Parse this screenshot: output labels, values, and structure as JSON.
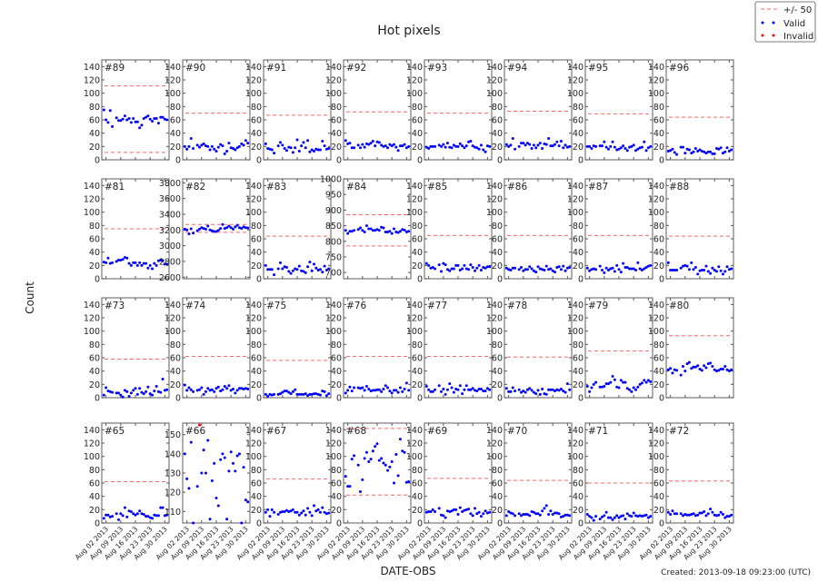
{
  "chart_data": {
    "type": "scatter",
    "title": "Hot pixels",
    "xlabel": "DATE-OBS",
    "ylabel": "Count",
    "footer": "Created: 2013-09-18 09:23:00 (UTC)",
    "legend": {
      "placement": "top-right",
      "entries": [
        {
          "label": "+/- 50",
          "style": "dashed-line",
          "color": "#ff6666"
        },
        {
          "label": "Valid",
          "style": "dots",
          "color": "#0000ff"
        },
        {
          "label": "Invalid",
          "style": "dots",
          "color": "#ff0000"
        }
      ]
    },
    "colors": {
      "valid": "#0000ff",
      "invalid": "#ff0000",
      "limit": "#ff6666"
    },
    "grid": false,
    "xlim": [
      "2013-07-31",
      "2013-09-01"
    ],
    "xticks": [
      "2013-08-02",
      "2013-08-09",
      "2013-08-16",
      "2013-08-23",
      "2013-08-30"
    ],
    "xtick_labels": [
      "Aug 02 2013",
      "Aug 09 2013",
      "Aug 16 2013",
      "Aug 23 2013",
      "Aug 30 2013"
    ],
    "dates": [
      "2013-08-01",
      "2013-08-02",
      "2013-08-03",
      "2013-08-04",
      "2013-08-05",
      "2013-08-07",
      "2013-08-08",
      "2013-08-09",
      "2013-08-10",
      "2013-08-11",
      "2013-08-12",
      "2013-08-13",
      "2013-08-14",
      "2013-08-15",
      "2013-08-16",
      "2013-08-17",
      "2013-08-18",
      "2013-08-19",
      "2013-08-20",
      "2013-08-21",
      "2013-08-22",
      "2013-08-23",
      "2013-08-24",
      "2013-08-25",
      "2013-08-26",
      "2013-08-27",
      "2013-08-28",
      "2013-08-29",
      "2013-08-30",
      "2013-08-31"
    ],
    "default_ylim": [
      0,
      150
    ],
    "default_yticks": [
      0,
      20,
      40,
      60,
      80,
      100,
      120,
      140
    ],
    "panels": [
      {
        "label": "#89",
        "limits": [
          111,
          11
        ],
        "values": [
          75,
          60,
          56,
          74,
          50,
          63,
          59,
          59,
          61,
          66,
          60,
          62,
          56,
          62,
          57,
          57,
          48,
          52,
          62,
          64,
          66,
          61,
          58,
          62,
          62,
          55,
          64,
          64,
          61,
          60
        ]
      },
      {
        "label": "#90",
        "limits": [
          70
        ],
        "values": [
          20,
          16,
          20,
          32,
          17,
          22,
          19,
          22,
          24,
          21,
          20,
          15,
          20,
          16,
          13,
          19,
          23,
          21,
          9,
          13,
          25,
          18,
          17,
          15,
          18,
          20,
          24,
          22,
          29,
          25
        ]
      },
      {
        "label": "#91",
        "limits": [
          67
        ],
        "values": [
          24,
          17,
          16,
          15,
          10,
          21,
          26,
          22,
          17,
          14,
          19,
          18,
          11,
          18,
          30,
          13,
          21,
          26,
          18,
          29,
          12,
          15,
          13,
          16,
          15,
          15,
          28,
          21,
          16,
          17
        ]
      },
      {
        "label": "#92",
        "limits": [
          72
        ],
        "values": [
          29,
          24,
          25,
          18,
          18,
          22,
          18,
          23,
          19,
          24,
          23,
          25,
          28,
          21,
          27,
          26,
          22,
          20,
          21,
          18,
          23,
          21,
          23,
          19,
          14,
          21,
          21,
          23,
          18,
          20
        ]
      },
      {
        "label": "#93",
        "limits": [
          70
        ],
        "values": [
          19,
          17,
          20,
          20,
          20,
          22,
          20,
          23,
          19,
          25,
          19,
          18,
          22,
          20,
          20,
          24,
          21,
          18,
          21,
          27,
          28,
          21,
          19,
          18,
          16,
          22,
          15,
          12,
          21,
          20
        ]
      },
      {
        "label": "#94",
        "limits": [
          73
        ],
        "values": [
          23,
          20,
          22,
          32,
          16,
          20,
          25,
          25,
          22,
          25,
          23,
          17,
          22,
          18,
          22,
          25,
          17,
          24,
          23,
          32,
          21,
          21,
          23,
          27,
          21,
          28,
          18,
          22,
          19,
          20
        ]
      },
      {
        "label": "#95",
        "limits": [
          69
        ],
        "values": [
          20,
          20,
          17,
          21,
          20,
          21,
          21,
          27,
          19,
          16,
          20,
          27,
          19,
          15,
          16,
          18,
          21,
          17,
          14,
          19,
          20,
          22,
          14,
          16,
          18,
          19,
          27,
          14,
          18,
          20
        ]
      },
      {
        "label": "#96",
        "limits": [
          64
        ],
        "values": [
          13,
          14,
          16,
          11,
          8,
          19,
          19,
          10,
          16,
          15,
          10,
          12,
          17,
          13,
          15,
          13,
          12,
          10,
          12,
          12,
          9,
          9,
          17,
          16,
          18,
          10,
          12,
          18,
          13,
          15
        ]
      },
      {
        "label": "#81",
        "limits": [
          75
        ],
        "values": [
          25,
          24,
          31,
          23,
          24,
          26,
          28,
          28,
          29,
          32,
          31,
          23,
          20,
          24,
          24,
          20,
          24,
          20,
          23,
          23,
          16,
          20,
          15,
          23,
          20,
          27,
          28,
          27,
          22,
          22
        ]
      },
      {
        "label": "#82",
        "limits": [
          3270,
          3170
        ],
        "ylim": [
          2580,
          3850
        ],
        "yticks": [
          2600,
          2800,
          3000,
          3200,
          3400,
          3600,
          3800
        ],
        "values": [
          3210,
          3200,
          3150,
          3215,
          3160,
          3190,
          3210,
          3230,
          3220,
          3210,
          3250,
          3200,
          3190,
          3180,
          3180,
          3195,
          3220,
          3270,
          3220,
          3230,
          3250,
          3230,
          3210,
          3240,
          3260,
          3230,
          3220,
          3240,
          3230,
          3225
        ]
      },
      {
        "label": "#83",
        "limits": [
          64
        ],
        "values": [
          20,
          14,
          14,
          14,
          6,
          15,
          24,
          15,
          18,
          17,
          11,
          8,
          12,
          15,
          14,
          19,
          12,
          11,
          9,
          18,
          25,
          12,
          22,
          16,
          13,
          14,
          10,
          19,
          13,
          15
        ]
      },
      {
        "label": "#84",
        "limits": [
          885,
          785
        ],
        "ylim": [
          680,
          1000
        ],
        "yticks": [
          700,
          750,
          800,
          850,
          900,
          950,
          1000
        ],
        "values": [
          835,
          825,
          832,
          832,
          835,
          838,
          843,
          835,
          830,
          850,
          840,
          840,
          835,
          835,
          838,
          835,
          845,
          843,
          830,
          830,
          832,
          825,
          840,
          830,
          828,
          832,
          838,
          836,
          830,
          832
        ]
      },
      {
        "label": "#85",
        "limits": [
          65
        ],
        "values": [
          23,
          20,
          16,
          17,
          15,
          21,
          11,
          23,
          21,
          14,
          12,
          15,
          15,
          20,
          20,
          13,
          15,
          20,
          15,
          14,
          21,
          17,
          12,
          16,
          20,
          13,
          17,
          16,
          18,
          18
        ]
      },
      {
        "label": "#86",
        "limits": [
          65
        ],
        "values": [
          16,
          14,
          13,
          16,
          16,
          14,
          17,
          12,
          14,
          14,
          18,
          15,
          12,
          10,
          18,
          15,
          14,
          13,
          19,
          14,
          15,
          12,
          10,
          17,
          18,
          14,
          19,
          12,
          16,
          17
        ]
      },
      {
        "label": "#87",
        "limits": [
          65
        ],
        "values": [
          16,
          12,
          14,
          15,
          14,
          19,
          13,
          9,
          16,
          13,
          15,
          16,
          11,
          20,
          14,
          10,
          23,
          17,
          17,
          15,
          15,
          15,
          13,
          24,
          15,
          13,
          15,
          17,
          19,
          20
        ]
      },
      {
        "label": "#88",
        "limits": [
          64
        ],
        "values": [
          24,
          13,
          13,
          13,
          13,
          16,
          19,
          20,
          19,
          14,
          24,
          14,
          17,
          7,
          12,
          13,
          13,
          19,
          11,
          8,
          16,
          13,
          11,
          18,
          12,
          7,
          11,
          18,
          14,
          15
        ]
      },
      {
        "label": "#73",
        "limits": [
          58
        ],
        "values": [
          4,
          15,
          10,
          9,
          8,
          7,
          7,
          4,
          1,
          11,
          9,
          2,
          7,
          11,
          14,
          5,
          14,
          8,
          6,
          9,
          16,
          6,
          4,
          10,
          17,
          9,
          8,
          28,
          11,
          12
        ]
      },
      {
        "label": "#74",
        "limits": [
          62
        ],
        "values": [
          19,
          11,
          15,
          12,
          9,
          11,
          12,
          15,
          5,
          9,
          14,
          11,
          12,
          9,
          14,
          16,
          10,
          12,
          17,
          14,
          18,
          11,
          13,
          7,
          11,
          14,
          14,
          13,
          14,
          13
        ]
      },
      {
        "label": "#75",
        "limits": [
          56
        ],
        "values": [
          5,
          2,
          5,
          4,
          5,
          5,
          6,
          8,
          10,
          10,
          8,
          6,
          9,
          12,
          5,
          5,
          5,
          5,
          6,
          3,
          5,
          5,
          6,
          6,
          5,
          4,
          10,
          9,
          3,
          6
        ]
      },
      {
        "label": "#76",
        "limits": [
          62
        ],
        "values": [
          7,
          11,
          16,
          10,
          15,
          15,
          14,
          15,
          11,
          17,
          13,
          10,
          11,
          11,
          12,
          12,
          9,
          13,
          18,
          15,
          10,
          7,
          11,
          11,
          8,
          15,
          9,
          13,
          22,
          11
        ]
      },
      {
        "label": "#77",
        "limits": [
          62
        ],
        "values": [
          17,
          12,
          9,
          9,
          12,
          18,
          9,
          13,
          5,
          12,
          21,
          15,
          8,
          13,
          12,
          18,
          6,
          12,
          18,
          12,
          12,
          14,
          11,
          10,
          13,
          13,
          10,
          10,
          14,
          12
        ]
      },
      {
        "label": "#78",
        "limits": [
          61
        ],
        "values": [
          14,
          9,
          9,
          15,
          10,
          12,
          8,
          10,
          8,
          12,
          14,
          11,
          8,
          6,
          11,
          5,
          13,
          6,
          5,
          12,
          12,
          12,
          10,
          12,
          11,
          13,
          10,
          8,
          21,
          12
        ]
      },
      {
        "label": "#79",
        "limits": [
          70
        ],
        "values": [
          17,
          9,
          15,
          20,
          23,
          16,
          16,
          17,
          21,
          21,
          23,
          32,
          27,
          16,
          15,
          26,
          23,
          23,
          14,
          12,
          9,
          15,
          12,
          16,
          20,
          22,
          26,
          23,
          26,
          24
        ]
      },
      {
        "label": "#80",
        "limits": [
          93
        ],
        "values": [
          42,
          44,
          37,
          42,
          41,
          34,
          47,
          40,
          51,
          53,
          44,
          46,
          46,
          48,
          43,
          41,
          48,
          45,
          51,
          52,
          47,
          42,
          40,
          41,
          43,
          43,
          47,
          42,
          40,
          42
        ]
      },
      {
        "label": "#65",
        "limits": [
          62
        ],
        "values": [
          7,
          12,
          12,
          9,
          10,
          14,
          5,
          14,
          11,
          23,
          9,
          18,
          17,
          14,
          12,
          14,
          18,
          14,
          13,
          10,
          10,
          8,
          7,
          12,
          11,
          11,
          23,
          23,
          11,
          12
        ]
      },
      {
        "label": "#66",
        "limits": [],
        "ylim": [
          104,
          156
        ],
        "yticks": [
          110,
          120,
          130,
          140,
          150
        ],
        "values": [
          140,
          127,
          122,
          146,
          104,
          123,
          null,
          130,
          142,
          130,
          147,
          106,
          126,
          135,
          117,
          113,
          137,
          140,
          138,
          106,
          131,
          141,
          135,
          131,
          139,
          140,
          104,
          133,
          116,
          115
        ],
        "invalid": [
          {
            "date": "2013-08-08",
            "value": 155
          }
        ]
      },
      {
        "label": "#67",
        "limits": [
          66
        ],
        "values": [
          16,
          20,
          10,
          20,
          16,
          13,
          16,
          17,
          17,
          19,
          17,
          18,
          20,
          16,
          16,
          12,
          15,
          18,
          12,
          22,
          16,
          11,
          26,
          18,
          20,
          16,
          23,
          16,
          14,
          15
        ]
      },
      {
        "label": "#68",
        "limits": [
          142,
          42
        ],
        "values": [
          70,
          55,
          55,
          96,
          101,
          87,
          47,
          65,
          97,
          106,
          92,
          96,
          108,
          115,
          119,
          94,
          97,
          90,
          87,
          79,
          84,
          92,
          60,
          103,
          71,
          126,
          108,
          106,
          61,
          62
        ]
      },
      {
        "label": "#69",
        "limits": [
          67
        ],
        "values": [
          16,
          17,
          17,
          20,
          17,
          22,
          12,
          11,
          8,
          18,
          17,
          18,
          20,
          20,
          13,
          23,
          17,
          19,
          20,
          21,
          14,
          11,
          22,
          14,
          16,
          10,
          14,
          18,
          15,
          16
        ]
      },
      {
        "label": "#70",
        "limits": [
          64
        ],
        "values": [
          11,
          17,
          15,
          14,
          11,
          14,
          11,
          13,
          13,
          13,
          11,
          17,
          16,
          14,
          14,
          12,
          18,
          22,
          26,
          13,
          18,
          13,
          15,
          15,
          14,
          9,
          10,
          12,
          12,
          11
        ]
      },
      {
        "label": "#71",
        "limits": [
          60
        ],
        "values": [
          13,
          10,
          8,
          4,
          10,
          6,
          9,
          11,
          16,
          8,
          8,
          5,
          8,
          11,
          8,
          10,
          11,
          6,
          14,
          11,
          10,
          15,
          11,
          10,
          11,
          10,
          11,
          12,
          8,
          10
        ]
      },
      {
        "label": "#72",
        "limits": [
          63
        ],
        "values": [
          16,
          13,
          18,
          14,
          14,
          14,
          11,
          13,
          12,
          12,
          13,
          14,
          11,
          12,
          15,
          15,
          17,
          11,
          14,
          21,
          16,
          12,
          11,
          12,
          16,
          13,
          8,
          10,
          10,
          12
        ]
      }
    ]
  }
}
